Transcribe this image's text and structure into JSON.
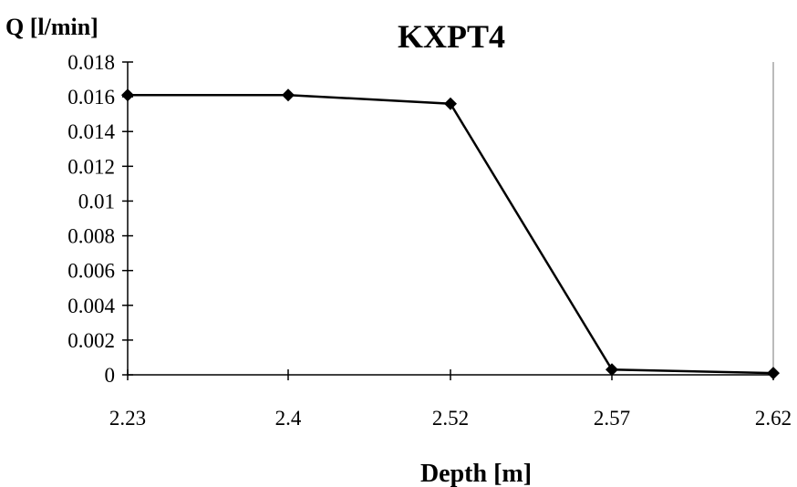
{
  "chart_data": {
    "type": "line",
    "title": "KXPT4",
    "ylabel": "Q [l/min]",
    "xlabel": "Depth [m]",
    "categories": [
      "2.23",
      "2.4",
      "2.52",
      "2.57",
      "2.62"
    ],
    "series": [
      {
        "values": [
          0.0161,
          0.0161,
          0.0156,
          0.0003,
          0.0001
        ]
      }
    ],
    "ylim": [
      0,
      0.018
    ],
    "yticks": [
      "0",
      "0.002",
      "0.004",
      "0.006",
      "0.008",
      "0.01",
      "0.012",
      "0.014",
      "0.016",
      "0.018"
    ],
    "grid": false,
    "marker": "diamond",
    "line_color": "#000000"
  }
}
